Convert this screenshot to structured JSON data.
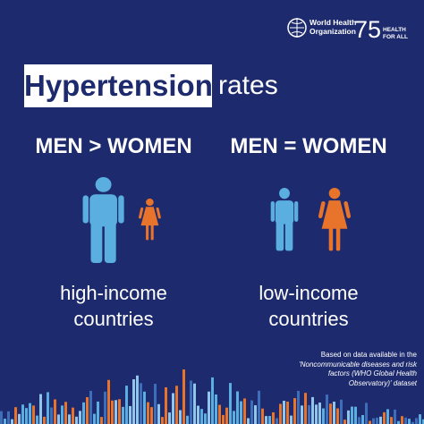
{
  "logo": {
    "org_line1": "World Health",
    "org_line2": "Organization",
    "anniversary": "75",
    "tagline_line1": "HEALTH",
    "tagline_line2": "FOR ALL"
  },
  "headline": {
    "highlight": "Hypertension",
    "rest": "rates"
  },
  "panels": [
    {
      "comparison": "MEN > WOMEN",
      "label_line1": "high-income",
      "label_line2": "countries"
    },
    {
      "comparison": "MEN = WOMEN",
      "label_line1": "low-income",
      "label_line2": "countries"
    }
  ],
  "footnote": [
    "Based on data available in the",
    "'Noncommunicable diseases and risk",
    "factors (WHO Global Health",
    "Observatory)' dataset"
  ]
}
